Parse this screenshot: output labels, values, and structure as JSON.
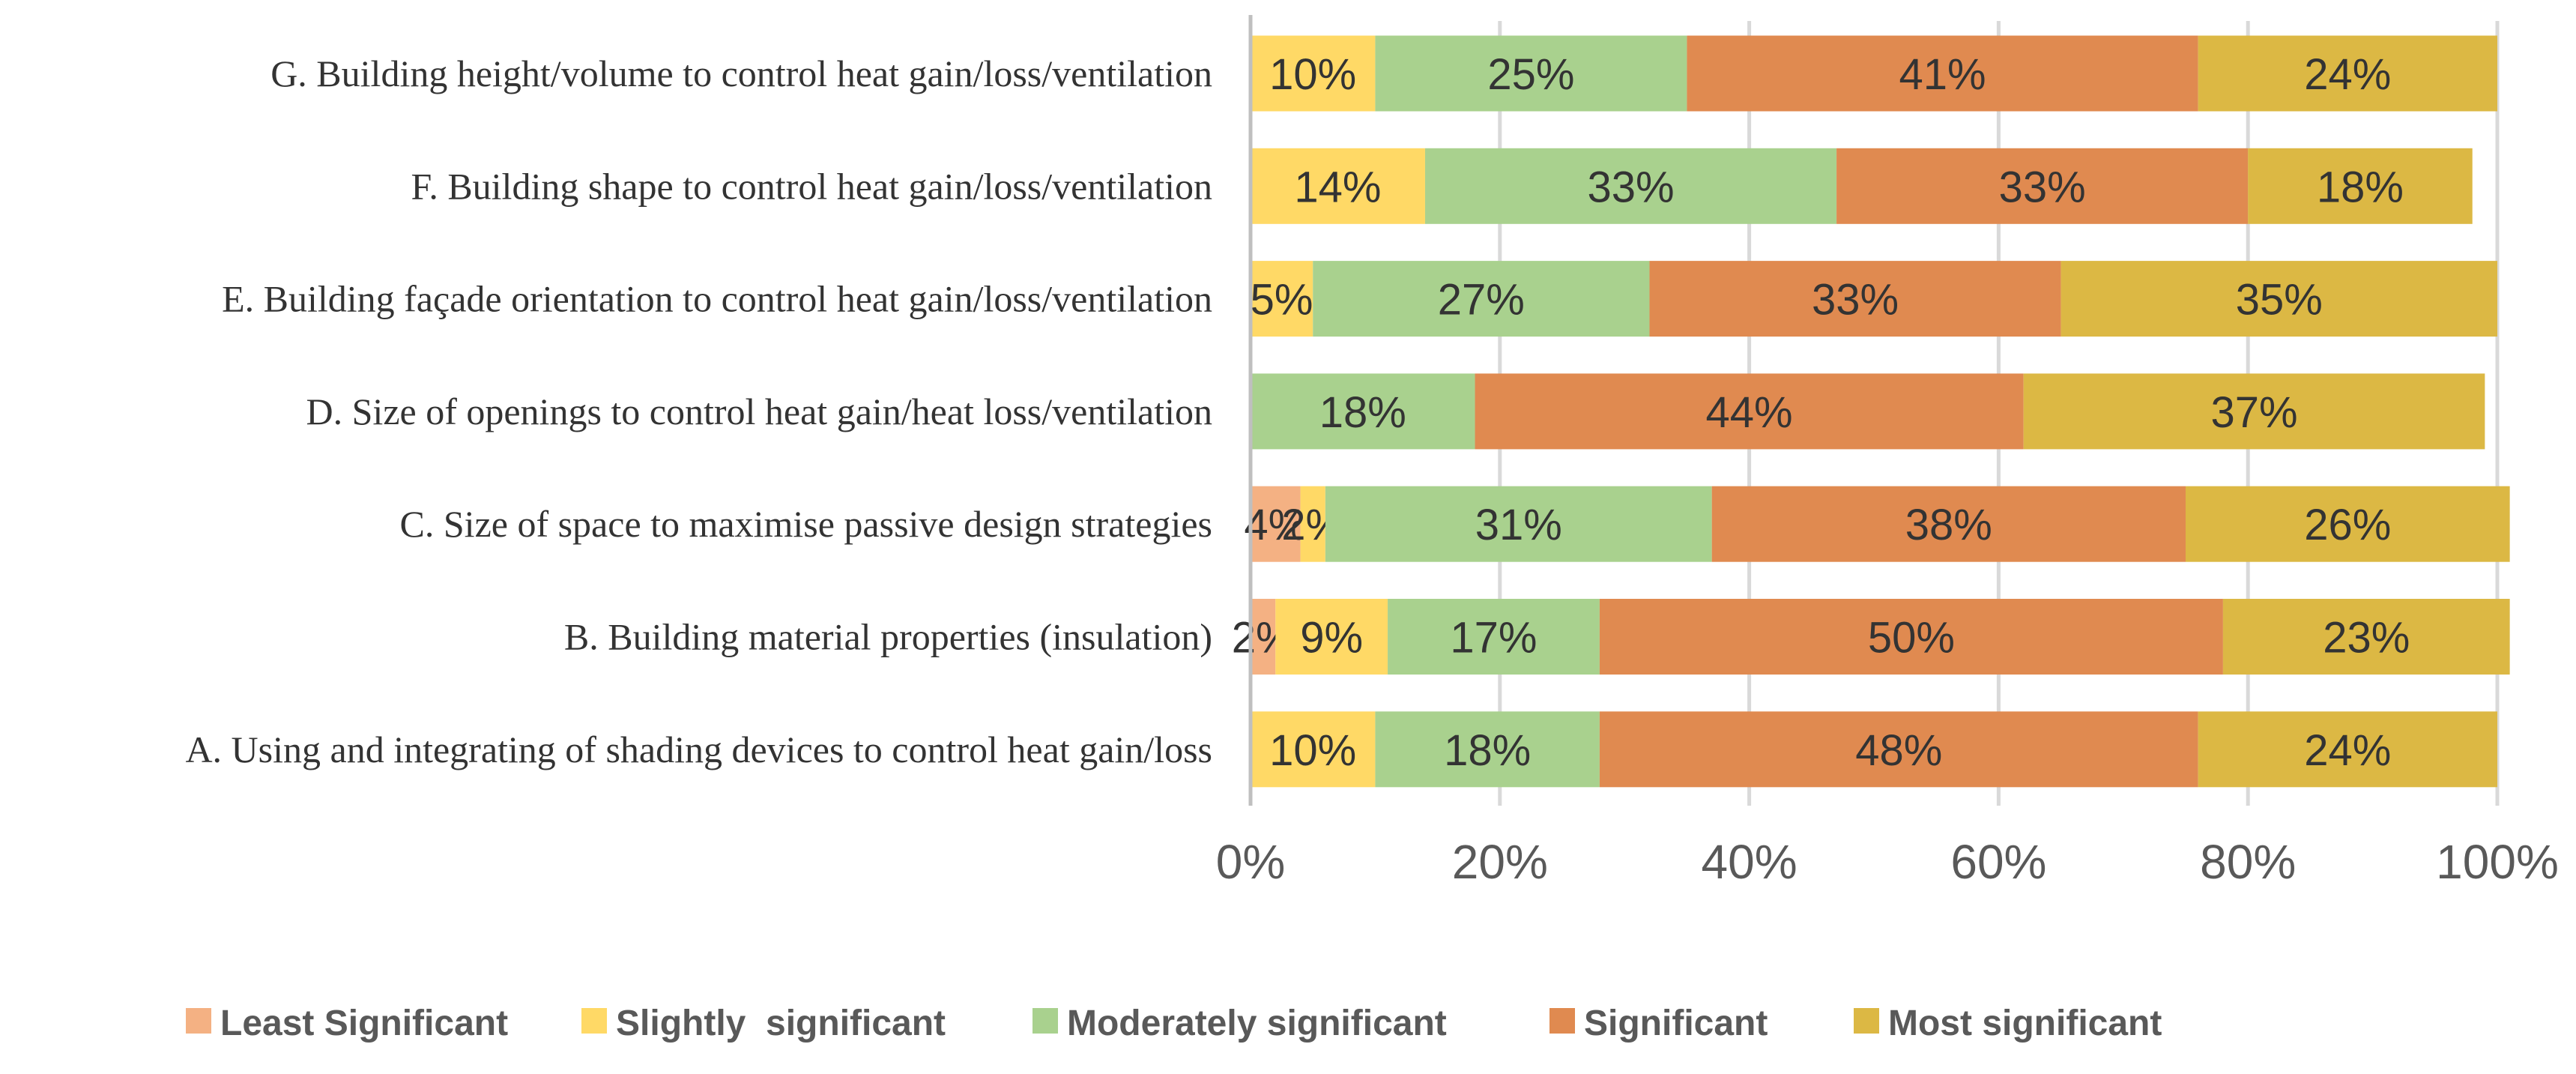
{
  "chart_data": {
    "type": "bar",
    "orientation": "horizontal",
    "stacked": "percent",
    "categories": [
      "G. Building height/volume to control heat gain/loss/ventilation",
      "F. Building shape to control heat gain/loss/ventilation",
      "E. Building façade orientation to control heat gain/loss/ventilation",
      "D. Size of openings to control heat gain/heat loss/ventilation",
      "C. Size of space to maximise passive design strategies",
      "B. Building material properties (insulation)",
      "A. Using and integrating of shading devices to control heat gain/loss"
    ],
    "series": [
      {
        "name": "Least Significant",
        "color": "#f4b183",
        "values": [
          0,
          0,
          0,
          0,
          4,
          2,
          0
        ],
        "labels": [
          "",
          "",
          "",
          "",
          "4%",
          "2%",
          ""
        ]
      },
      {
        "name": "Slightly  significant",
        "color": "#ffd966",
        "values": [
          10,
          14,
          5,
          0,
          2,
          9,
          10
        ],
        "labels": [
          "10%",
          "14%",
          "5%",
          "",
          "2%",
          "9%",
          "10%"
        ]
      },
      {
        "name": "Moderately significant",
        "color": "#a9d18e",
        "values": [
          25,
          33,
          27,
          18,
          31,
          17,
          18
        ],
        "labels": [
          "25%",
          "33%",
          "27%",
          "18%",
          "31%",
          "17%",
          "18%"
        ]
      },
      {
        "name": "Significant",
        "color": "#e08a50",
        "values": [
          41,
          33,
          33,
          44,
          38,
          50,
          48
        ],
        "labels": [
          "41%",
          "33%",
          "33%",
          "44%",
          "38%",
          "50%",
          "48%"
        ]
      },
      {
        "name": "Most significant",
        "color": "#dcb844",
        "values": [
          24,
          18,
          35,
          37,
          26,
          23,
          24
        ],
        "labels": [
          "24%",
          "18%",
          "35%",
          "37%",
          "26%",
          "23%",
          "24%"
        ]
      }
    ],
    "xlim": [
      0,
      100
    ],
    "x_ticks": [
      "0%",
      "20%",
      "40%",
      "60%",
      "80%",
      "100%"
    ],
    "grid": true,
    "legend_position": "bottom",
    "title": "",
    "xlabel": "",
    "ylabel": ""
  }
}
